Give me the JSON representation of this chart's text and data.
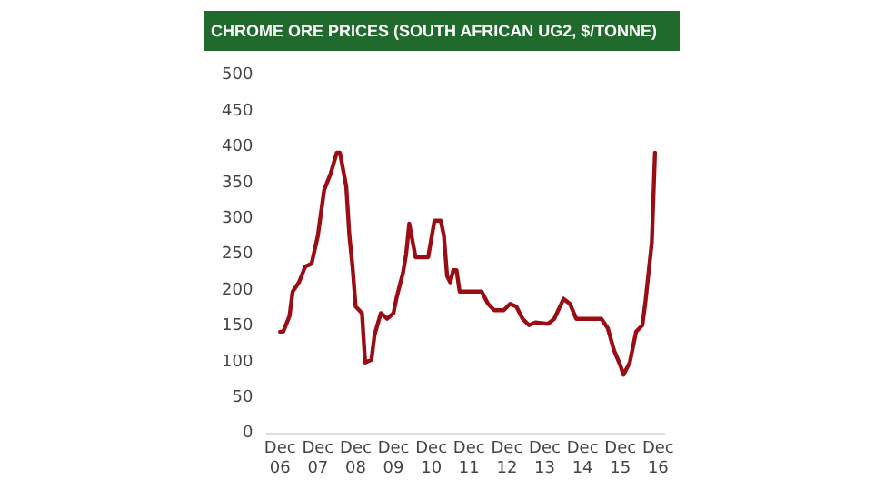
{
  "chart_data": {
    "type": "line",
    "title": "CHROME ORE PRICES (SOUTH AFRICAN UG2, $/TONNE)",
    "x": [
      "2006-12",
      "2007-01",
      "2007-03",
      "2007-04",
      "2007-06",
      "2007-08",
      "2007-10",
      "2007-12",
      "2008-02",
      "2008-04",
      "2008-06",
      "2008-07",
      "2008-09",
      "2008-10",
      "2008-11",
      "2008-12",
      "2009-02",
      "2009-03",
      "2009-05",
      "2009-06",
      "2009-08",
      "2009-10",
      "2009-12",
      "2010-01",
      "2010-03",
      "2010-04",
      "2010-05",
      "2010-07",
      "2010-11",
      "2011-01",
      "2011-03",
      "2011-04",
      "2011-05",
      "2011-06",
      "2011-07",
      "2011-08",
      "2011-09",
      "2011-11",
      "2012-04",
      "2012-06",
      "2012-08",
      "2012-11",
      "2013-01",
      "2013-03",
      "2013-05",
      "2013-07",
      "2013-09",
      "2014-01",
      "2014-03",
      "2014-06",
      "2014-08",
      "2014-10",
      "2015-02",
      "2015-06",
      "2015-08",
      "2015-10",
      "2015-12",
      "2016-01",
      "2016-03",
      "2016-05",
      "2016-07",
      "2016-08",
      "2016-10",
      "2016-11"
    ],
    "series": [
      {
        "color": "#9b0d14",
        "values": [
          142,
          142,
          164,
          198,
          211,
          233,
          237,
          276,
          340,
          362,
          392,
          392,
          345,
          276,
          233,
          177,
          168,
          99,
          103,
          138,
          168,
          160,
          168,
          190,
          224,
          250,
          293,
          246,
          246,
          297,
          297,
          276,
          220,
          211,
          228,
          228,
          198,
          198,
          198,
          181,
          172,
          172,
          181,
          177,
          160,
          151,
          155,
          153,
          160,
          188,
          181,
          160,
          160,
          160,
          147,
          116,
          95,
          82,
          99,
          142,
          151,
          185,
          267,
          392
        ]
      }
    ],
    "xlim": [
      "2006-08",
      "2017-02"
    ],
    "xticks": [
      {
        "value": "2006-12",
        "label": "Dec 06"
      },
      {
        "value": "2007-12",
        "label": "Dec 07"
      },
      {
        "value": "2008-12",
        "label": "Dec 08"
      },
      {
        "value": "2009-12",
        "label": "Dec 09"
      },
      {
        "value": "2010-12",
        "label": "Dec 10"
      },
      {
        "value": "2011-12",
        "label": "Dec 11"
      },
      {
        "value": "2012-12",
        "label": "Dec 12"
      },
      {
        "value": "2013-12",
        "label": "Dec 13"
      },
      {
        "value": "2014-12",
        "label": "Dec 14"
      },
      {
        "value": "2015-12",
        "label": "Dec 15"
      },
      {
        "value": "2016-12",
        "label": "Dec 16"
      }
    ],
    "ylim": [
      0,
      500
    ],
    "yticks": [
      0,
      50,
      100,
      150,
      200,
      250,
      300,
      350,
      400,
      450,
      500
    ],
    "grid": false,
    "legend": false,
    "marker": "none",
    "line_style": "solid"
  }
}
